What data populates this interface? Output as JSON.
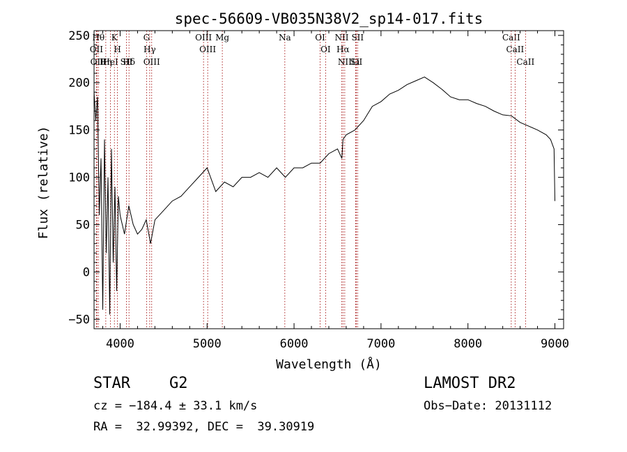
{
  "chart_data": {
    "type": "line",
    "title": "spec-56609-VB035N38V2_sp14-017.fits",
    "xlabel": "Wavelength (Å)",
    "ylabel": "Flux (relative)",
    "xlim": [
      3700,
      9100
    ],
    "ylim": [
      -60,
      255
    ],
    "x_ticks": [
      4000,
      5000,
      6000,
      7000,
      8000,
      9000
    ],
    "y_ticks": [
      -50,
      0,
      50,
      100,
      150,
      200,
      250
    ],
    "grid": false,
    "series": [
      {
        "x": [
          3700,
          3720,
          3740,
          3760,
          3780,
          3800,
          3820,
          3840,
          3860,
          3880,
          3900,
          3920,
          3940,
          3960,
          3980,
          4000,
          4050,
          4100,
          4150,
          4200,
          4250,
          4300,
          4350,
          4400,
          4500,
          4600,
          4700,
          4800,
          4900,
          5000,
          5100,
          5200,
          5300,
          5400,
          5500,
          5600,
          5700,
          5800,
          5900,
          6000,
          6100,
          6200,
          6300,
          6400,
          6500,
          6550,
          6563,
          6600,
          6700,
          6800,
          6900,
          7000,
          7100,
          7200,
          7300,
          7400,
          7500,
          7600,
          7700,
          7800,
          7900,
          8000,
          8100,
          8200,
          8300,
          8400,
          8500,
          8600,
          8700,
          8800,
          8900,
          8950,
          8990,
          9000
        ],
        "y": [
          190,
          160,
          185,
          60,
          120,
          -40,
          140,
          20,
          100,
          -45,
          130,
          10,
          90,
          -20,
          80,
          60,
          40,
          70,
          50,
          40,
          45,
          55,
          30,
          55,
          65,
          75,
          80,
          90,
          100,
          110,
          85,
          95,
          90,
          100,
          100,
          105,
          100,
          110,
          100,
          110,
          110,
          115,
          115,
          125,
          130,
          120,
          140,
          145,
          150,
          160,
          175,
          180,
          188,
          192,
          198,
          202,
          206,
          200,
          193,
          185,
          182,
          182,
          178,
          175,
          170,
          166,
          165,
          158,
          154,
          150,
          145,
          140,
          130,
          75
        ]
      }
    ],
    "lines": [
      {
        "x": 3750,
        "label": "Hθ"
      },
      {
        "x": 3727,
        "label": "OII"
      },
      {
        "x": 3734,
        "label": "OII"
      },
      {
        "x": 3835,
        "label": "Hη"
      },
      {
        "x": 3889,
        "label": "HeI"
      },
      {
        "x": 3934,
        "label": "K"
      },
      {
        "x": 3969,
        "label": "H"
      },
      {
        "x": 4072,
        "label": "SII"
      },
      {
        "x": 4102,
        "label": "Hδ"
      },
      {
        "x": 4304,
        "label": "G"
      },
      {
        "x": 4340,
        "label": "Hγ"
      },
      {
        "x": 4363,
        "label": "OIII"
      },
      {
        "x": 4959,
        "label": "OIII"
      },
      {
        "x": 5007,
        "label": "OIII"
      },
      {
        "x": 5175,
        "label": "Mg"
      },
      {
        "x": 5894,
        "label": "Na"
      },
      {
        "x": 6300,
        "label": "OI"
      },
      {
        "x": 6363,
        "label": "OI"
      },
      {
        "x": 6548,
        "label": "NII"
      },
      {
        "x": 6563,
        "label": "Hα"
      },
      {
        "x": 6583,
        "label": "NII"
      },
      {
        "x": 6708,
        "label": "Li"
      },
      {
        "x": 6716,
        "label": "SII"
      },
      {
        "x": 6731,
        "label": "SII"
      },
      {
        "x": 8498,
        "label": "CaII"
      },
      {
        "x": 8542,
        "label": "CaII"
      },
      {
        "x": 8662,
        "label": "CaII"
      }
    ]
  },
  "info": {
    "object_class": "STAR",
    "subclass": "G2",
    "survey": "LAMOST DR2",
    "cz": "cz = −184.4 ± 33.1 km/s",
    "obs_date": "Obs−Date: 20131112",
    "radec": "RA =  32.99392, DEC =  39.30919"
  }
}
